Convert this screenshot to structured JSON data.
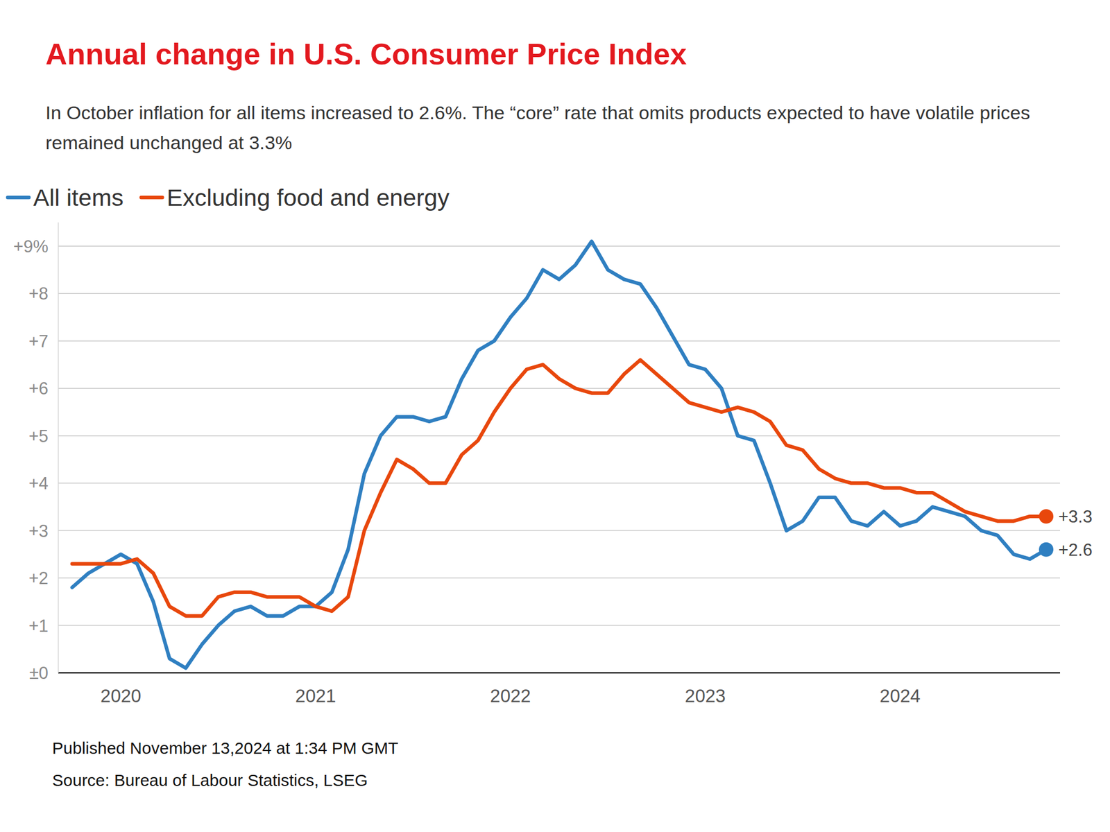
{
  "chart_data": {
    "type": "line",
    "title": "Annual change in U.S. Consumer Price Index",
    "subtitle": "In October inflation for all items increased to 2.6%. The “core” rate that omits products expected to have volatile prices remained unchanged at 3.3%",
    "annotations": [
      "Published November 13,2024 at 1:34 PM GMT",
      "Source: Bureau of Labour Statistics, LSEG"
    ],
    "categories": [
      null,
      null,
      null,
      "2020",
      null,
      null,
      null,
      null,
      null,
      null,
      null,
      null,
      null,
      null,
      null,
      "2021",
      null,
      null,
      null,
      null,
      null,
      null,
      null,
      null,
      null,
      null,
      null,
      "2022",
      null,
      null,
      null,
      null,
      null,
      null,
      null,
      null,
      null,
      null,
      null,
      "2023",
      null,
      null,
      null,
      null,
      null,
      null,
      null,
      null,
      null,
      null,
      null,
      "2024",
      null,
      null,
      null,
      null,
      null,
      null,
      null,
      null,
      null
    ],
    "series": [
      {
        "name": "All items",
        "color": "#2f7fc1",
        "values": [
          1.8,
          2.1,
          2.3,
          2.5,
          2.3,
          1.5,
          0.3,
          0.1,
          0.6,
          1.0,
          1.3,
          1.4,
          1.2,
          1.2,
          1.4,
          1.4,
          1.7,
          2.6,
          4.2,
          5.0,
          5.4,
          5.4,
          5.3,
          5.4,
          6.2,
          6.8,
          7.0,
          7.5,
          7.9,
          8.5,
          8.3,
          8.6,
          9.1,
          8.5,
          8.3,
          8.2,
          7.7,
          7.1,
          6.5,
          6.4,
          6.0,
          5.0,
          4.9,
          4.0,
          3.0,
          3.2,
          3.7,
          3.7,
          3.2,
          3.1,
          3.4,
          3.1,
          3.2,
          3.5,
          3.4,
          3.3,
          3.0,
          2.9,
          2.5,
          2.4,
          2.6
        ],
        "value_labels": [
          null,
          null,
          null,
          null,
          null,
          null,
          null,
          null,
          null,
          null,
          null,
          null,
          null,
          null,
          null,
          null,
          null,
          null,
          null,
          null,
          null,
          null,
          null,
          null,
          null,
          null,
          null,
          null,
          null,
          null,
          null,
          null,
          null,
          null,
          null,
          null,
          null,
          null,
          null,
          null,
          null,
          null,
          null,
          null,
          null,
          null,
          null,
          null,
          null,
          null,
          null,
          null,
          null,
          null,
          null,
          null,
          null,
          null,
          null,
          null,
          "+2.6"
        ]
      },
      {
        "name": "Excluding food and energy",
        "color": "#e8470c",
        "values": [
          2.3,
          2.3,
          2.3,
          2.3,
          2.4,
          2.1,
          1.4,
          1.2,
          1.2,
          1.6,
          1.7,
          1.7,
          1.6,
          1.6,
          1.6,
          1.4,
          1.3,
          1.6,
          3.0,
          3.8,
          4.5,
          4.3,
          4.0,
          4.0,
          4.6,
          4.9,
          5.5,
          6.0,
          6.4,
          6.5,
          6.2,
          6.0,
          5.9,
          5.9,
          6.3,
          6.6,
          6.3,
          6.0,
          5.7,
          5.6,
          5.5,
          5.6,
          5.5,
          5.3,
          4.8,
          4.7,
          4.3,
          4.1,
          4.0,
          4.0,
          3.9,
          3.9,
          3.8,
          3.8,
          3.6,
          3.4,
          3.3,
          3.2,
          3.2,
          3.3,
          3.3
        ],
        "value_labels": [
          null,
          null,
          null,
          null,
          null,
          null,
          null,
          null,
          null,
          null,
          null,
          null,
          null,
          null,
          null,
          null,
          null,
          null,
          null,
          null,
          null,
          null,
          null,
          null,
          null,
          null,
          null,
          null,
          null,
          null,
          null,
          null,
          null,
          null,
          null,
          null,
          null,
          null,
          null,
          null,
          null,
          null,
          null,
          null,
          null,
          null,
          null,
          null,
          null,
          null,
          null,
          null,
          null,
          null,
          null,
          null,
          null,
          null,
          null,
          null,
          "+3.3"
        ]
      }
    ],
    "ylim": [
      0,
      9.5
    ],
    "yticks": [
      {
        "value": 0,
        "label": "±0"
      },
      {
        "value": 1,
        "label": "+1"
      },
      {
        "value": 2,
        "label": "+2"
      },
      {
        "value": 3,
        "label": "+3"
      },
      {
        "value": 4,
        "label": "+4"
      },
      {
        "value": 5,
        "label": "+5"
      },
      {
        "value": 6,
        "label": "+6"
      },
      {
        "value": 7,
        "label": "+7"
      },
      {
        "value": 8,
        "label": "+8"
      },
      {
        "value": 9,
        "label": "+9%"
      }
    ],
    "grid": true,
    "legend": "top"
  }
}
